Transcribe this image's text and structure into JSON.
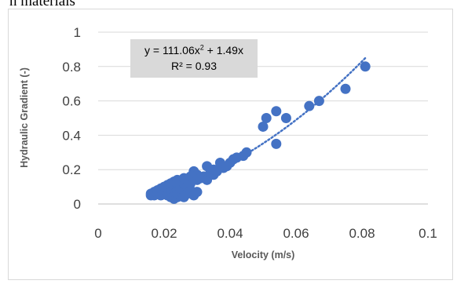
{
  "page": {
    "heading": "n materials"
  },
  "chart_data": {
    "type": "scatter",
    "title": "",
    "xlabel": "Velocity (m/s)",
    "ylabel": "Hydraulic Gradient (-)",
    "xlim": [
      0,
      0.1
    ],
    "ylim": [
      0,
      1
    ],
    "xticks": [
      0,
      0.02,
      0.04,
      0.06,
      0.08,
      0.1
    ],
    "yticks": [
      0,
      0.2,
      0.4,
      0.6,
      0.8,
      1
    ],
    "xtick_labels": [
      "0",
      "0.02",
      "0.04",
      "0.06",
      "0.08",
      "0.1"
    ],
    "ytick_labels": [
      "0",
      "0.2",
      "0.4",
      "0.6",
      "0.8",
      "1"
    ],
    "grid": "horizontal",
    "marker_color": "#4472c4",
    "trendline": {
      "type": "polynomial",
      "coefficients": {
        "a": 111.06,
        "b": 1.49,
        "c": 0
      },
      "equation_text": {
        "pre": "y = 111.06x",
        "sup": "2",
        "post": " + 1.49x"
      },
      "r2_text": "R² = 0.93",
      "x_range": [
        0.015,
        0.081
      ],
      "style": "dotted"
    },
    "points": [
      [
        0.016,
        0.05
      ],
      [
        0.016,
        0.06
      ],
      [
        0.017,
        0.05
      ],
      [
        0.017,
        0.07
      ],
      [
        0.018,
        0.06
      ],
      [
        0.018,
        0.08
      ],
      [
        0.019,
        0.05
      ],
      [
        0.019,
        0.07
      ],
      [
        0.019,
        0.09
      ],
      [
        0.02,
        0.06
      ],
      [
        0.02,
        0.08
      ],
      [
        0.02,
        0.1
      ],
      [
        0.021,
        0.05
      ],
      [
        0.021,
        0.07
      ],
      [
        0.021,
        0.09
      ],
      [
        0.021,
        0.11
      ],
      [
        0.022,
        0.04
      ],
      [
        0.022,
        0.06
      ],
      [
        0.022,
        0.08
      ],
      [
        0.022,
        0.1
      ],
      [
        0.022,
        0.12
      ],
      [
        0.023,
        0.03
      ],
      [
        0.023,
        0.05
      ],
      [
        0.023,
        0.07
      ],
      [
        0.023,
        0.09
      ],
      [
        0.023,
        0.11
      ],
      [
        0.023,
        0.13
      ],
      [
        0.024,
        0.04
      ],
      [
        0.024,
        0.06
      ],
      [
        0.024,
        0.08
      ],
      [
        0.024,
        0.1
      ],
      [
        0.024,
        0.12
      ],
      [
        0.024,
        0.14
      ],
      [
        0.025,
        0.05
      ],
      [
        0.025,
        0.07
      ],
      [
        0.025,
        0.09
      ],
      [
        0.025,
        0.11
      ],
      [
        0.025,
        0.13
      ],
      [
        0.026,
        0.04
      ],
      [
        0.026,
        0.08
      ],
      [
        0.026,
        0.12
      ],
      [
        0.026,
        0.15
      ],
      [
        0.027,
        0.06
      ],
      [
        0.027,
        0.1
      ],
      [
        0.027,
        0.14
      ],
      [
        0.028,
        0.08
      ],
      [
        0.028,
        0.12
      ],
      [
        0.028,
        0.16
      ],
      [
        0.029,
        0.05
      ],
      [
        0.029,
        0.19
      ],
      [
        0.03,
        0.07
      ],
      [
        0.03,
        0.14
      ],
      [
        0.03,
        0.17
      ],
      [
        0.031,
        0.15
      ],
      [
        0.032,
        0.16
      ],
      [
        0.033,
        0.14
      ],
      [
        0.033,
        0.22
      ],
      [
        0.034,
        0.18
      ],
      [
        0.035,
        0.17
      ],
      [
        0.035,
        0.2
      ],
      [
        0.036,
        0.19
      ],
      [
        0.037,
        0.24
      ],
      [
        0.038,
        0.21
      ],
      [
        0.039,
        0.22
      ],
      [
        0.04,
        0.24
      ],
      [
        0.041,
        0.26
      ],
      [
        0.042,
        0.27
      ],
      [
        0.044,
        0.28
      ],
      [
        0.045,
        0.3
      ],
      [
        0.05,
        0.45
      ],
      [
        0.051,
        0.5
      ],
      [
        0.054,
        0.54
      ],
      [
        0.054,
        0.35
      ],
      [
        0.057,
        0.5
      ],
      [
        0.064,
        0.57
      ],
      [
        0.067,
        0.6
      ],
      [
        0.075,
        0.67
      ],
      [
        0.081,
        0.8
      ]
    ]
  }
}
